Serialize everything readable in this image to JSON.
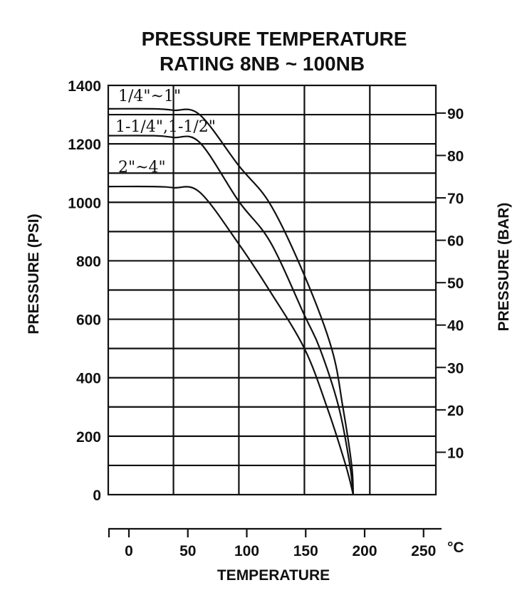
{
  "chart_data": {
    "type": "line",
    "title": [
      "PRESSURE TEMPERATURE",
      "RATING 8NB ~ 100NB"
    ],
    "xlabel": "TEMPERATURE",
    "x_unit": "°C",
    "ylabel": "PRESSURE (PSI)",
    "y2label": "PRESSURE (BAR)",
    "xlim": [
      -17.8,
      260
    ],
    "ylim": [
      0,
      1400
    ],
    "x_ticks": [
      0,
      50,
      100,
      150,
      200,
      250
    ],
    "x_tick_labels": [
      "0",
      "50",
      "100",
      "150",
      "200",
      "250"
    ],
    "y_ticks": [
      0,
      200,
      400,
      600,
      800,
      1000,
      1200,
      1400
    ],
    "y_tick_labels": [
      "0",
      "200",
      "400",
      "600",
      "800",
      "1000",
      "1200",
      "1400"
    ],
    "y2_ticks": [
      10,
      20,
      30,
      40,
      50,
      60,
      70,
      80,
      90
    ],
    "y2_tick_labels": [
      "10",
      "20",
      "30",
      "40",
      "50",
      "60",
      "70",
      "80",
      "90"
    ],
    "grid": true,
    "grid_x_values": [
      37.8,
      93.3,
      148.9,
      204.4
    ],
    "grid_y_step": 100,
    "series": [
      {
        "name": "1/4\"~1\"",
        "x": [
          -17.8,
          20,
          37.8,
          60,
          93.3,
          120,
          148.9,
          172,
          181.5,
          189,
          190.3
        ],
        "y": [
          1320,
          1320,
          1315,
          1300,
          1125,
          993,
          750,
          500,
          300,
          100,
          0
        ]
      },
      {
        "name": "1-1/4\",1-1/2\"",
        "x": [
          -17.8,
          20,
          37.8,
          60,
          93.3,
          120,
          148.9,
          162,
          178,
          187.5,
          190.3
        ],
        "y": [
          1228,
          1228,
          1222,
          1205,
          1003,
          864,
          614,
          500,
          300,
          100,
          0
        ]
      },
      {
        "name": "2\"~4\"",
        "x": [
          -17.8,
          20,
          37.8,
          60,
          93.3,
          120,
          148.9,
          168,
          184,
          190.3
        ],
        "y": [
          1054,
          1054,
          1050,
          1035,
          857,
          694,
          500,
          300,
          100,
          0
        ]
      }
    ]
  }
}
